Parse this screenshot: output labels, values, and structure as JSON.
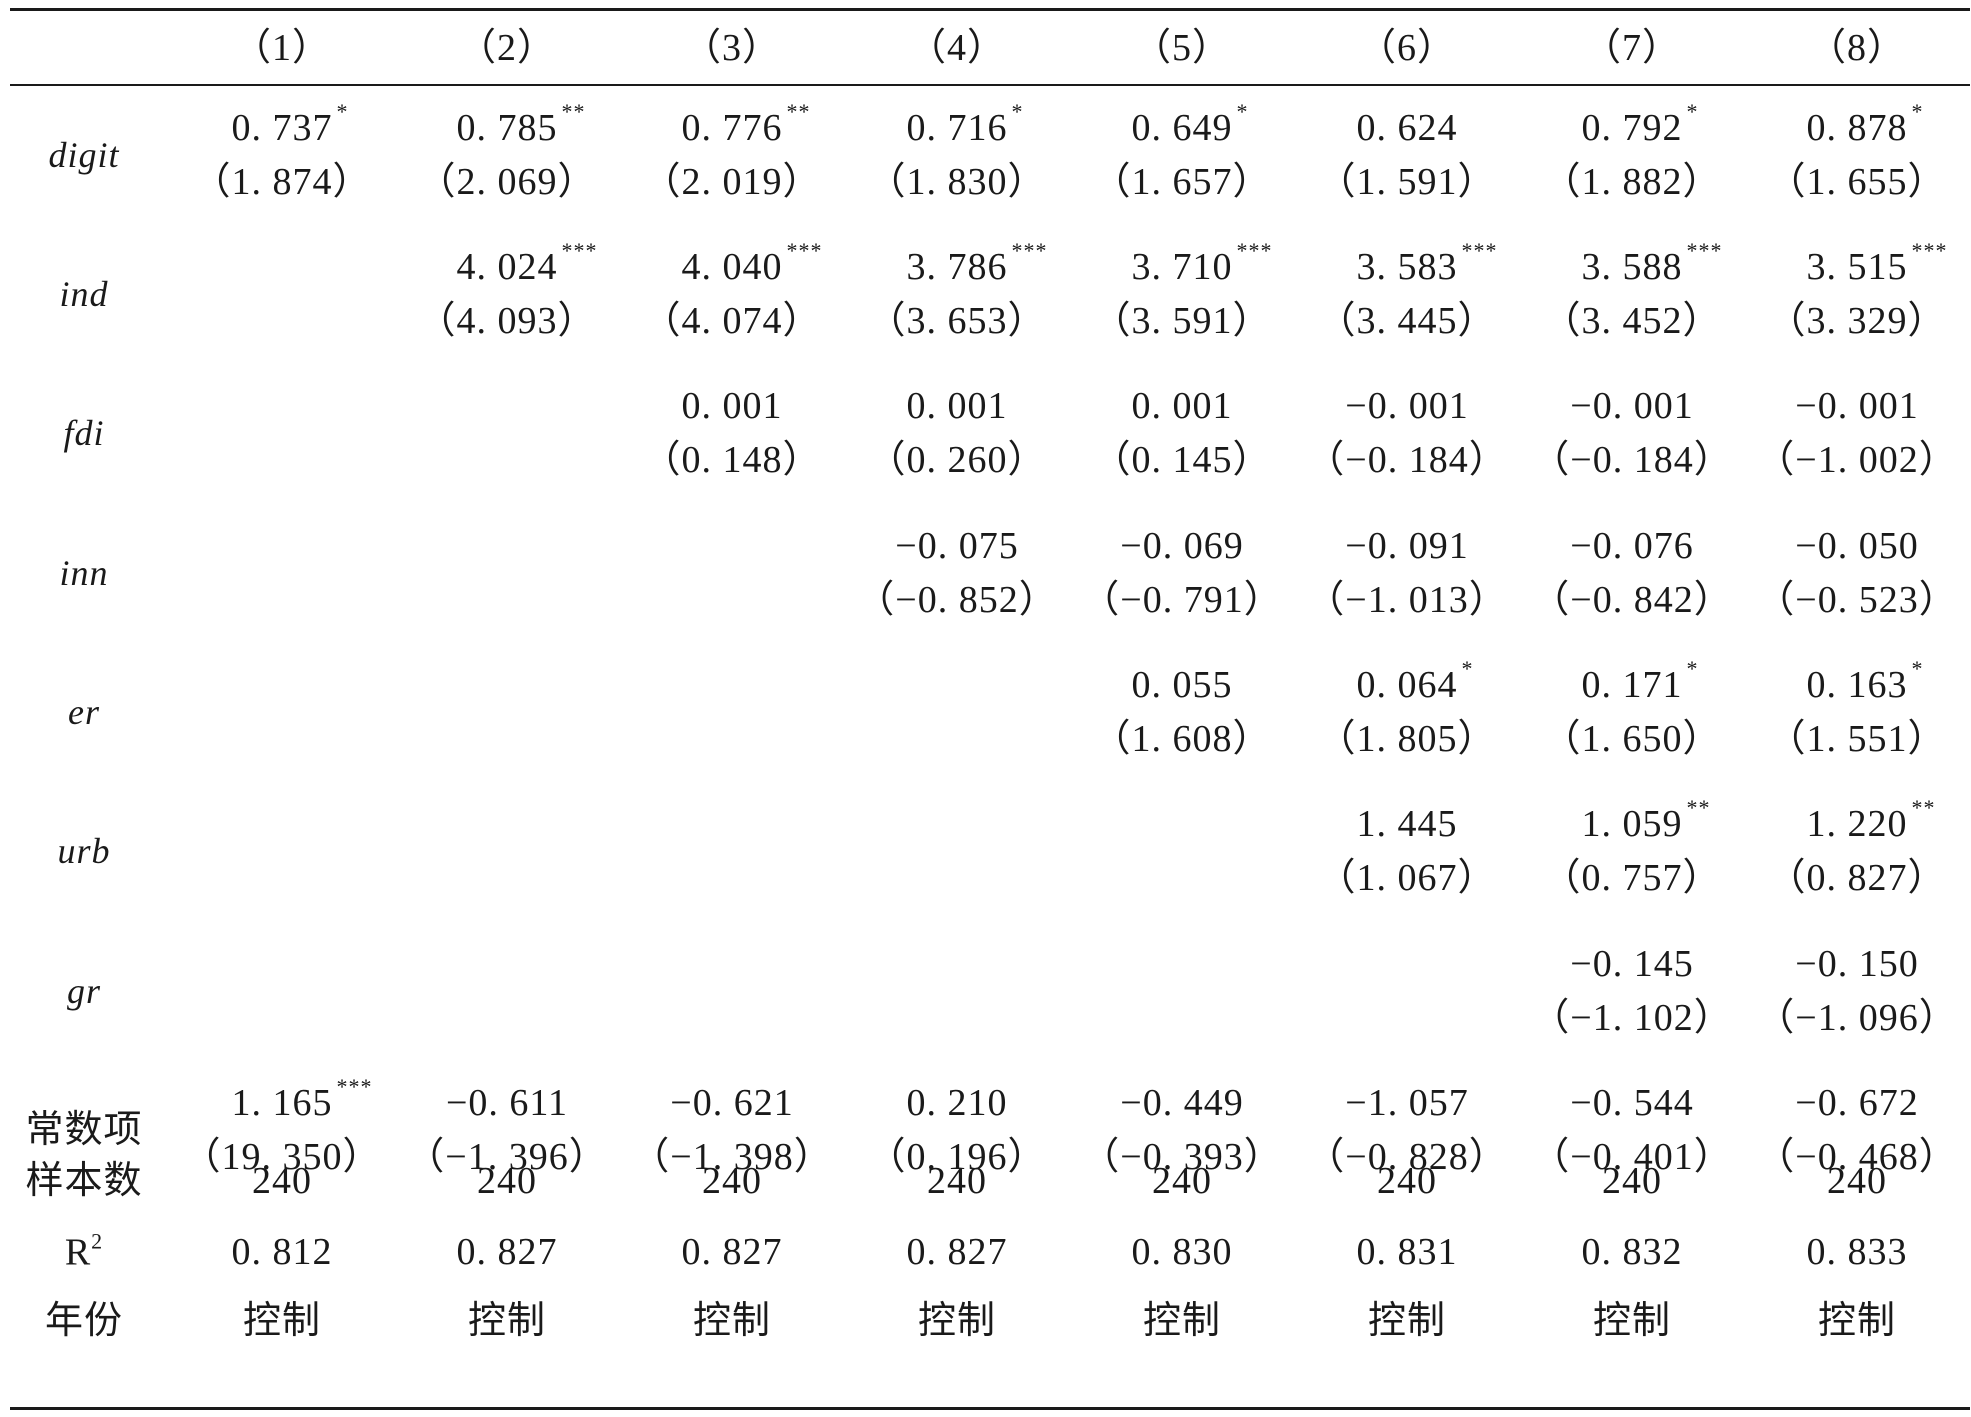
{
  "headers": [
    "（1）",
    "（2）",
    "（3）",
    "（4）",
    "（5）",
    "（6）",
    "（7）",
    "（8）"
  ],
  "variables": [
    {
      "name": "digit",
      "coef": [
        [
          "0. 737",
          "*"
        ],
        [
          "0. 785",
          "**"
        ],
        [
          "0. 776",
          "**"
        ],
        [
          "0. 716",
          "*"
        ],
        [
          "0. 649",
          "*"
        ],
        [
          "0. 624",
          ""
        ],
        [
          "0. 792",
          "*"
        ],
        [
          "0. 878",
          "*"
        ]
      ],
      "t": [
        "（1. 874）",
        "（2. 069）",
        "（2. 019）",
        "（1. 830）",
        "（1. 657）",
        "（1. 591）",
        "（1. 882）",
        "（1. 655）"
      ]
    },
    {
      "name": "ind",
      "coef": [
        null,
        [
          "4. 024",
          "***"
        ],
        [
          "4. 040",
          "***"
        ],
        [
          "3. 786",
          "***"
        ],
        [
          "3. 710",
          "***"
        ],
        [
          "3. 583",
          "***"
        ],
        [
          "3. 588",
          "***"
        ],
        [
          "3. 515",
          "***"
        ]
      ],
      "t": [
        null,
        "（4. 093）",
        "（4. 074）",
        "（3. 653）",
        "（3. 591）",
        "（3. 445）",
        "（3. 452）",
        "（3. 329）"
      ]
    },
    {
      "name": "fdi",
      "coef": [
        null,
        null,
        [
          "0. 001",
          ""
        ],
        [
          "0. 001",
          ""
        ],
        [
          "0. 001",
          ""
        ],
        [
          "−0. 001",
          ""
        ],
        [
          "−0. 001",
          ""
        ],
        [
          "−0. 001",
          ""
        ]
      ],
      "t": [
        null,
        null,
        "（0. 148）",
        "（0. 260）",
        "（0. 145）",
        "（−0. 184）",
        "（−0. 184）",
        "（−1. 002）"
      ]
    },
    {
      "name": "inn",
      "coef": [
        null,
        null,
        null,
        [
          "−0. 075",
          ""
        ],
        [
          "−0. 069",
          ""
        ],
        [
          "−0. 091",
          ""
        ],
        [
          "−0. 076",
          ""
        ],
        [
          "−0. 050",
          ""
        ]
      ],
      "t": [
        null,
        null,
        null,
        "（−0. 852）",
        "（−0. 791）",
        "（−1. 013）",
        "（−0. 842）",
        "（−0. 523）"
      ]
    },
    {
      "name": "er",
      "coef": [
        null,
        null,
        null,
        null,
        [
          "0. 055",
          ""
        ],
        [
          "0. 064",
          "*"
        ],
        [
          "0. 171",
          "*"
        ],
        [
          "0. 163",
          "*"
        ]
      ],
      "t": [
        null,
        null,
        null,
        null,
        "（1. 608）",
        "（1. 805）",
        "（1. 650）",
        "（1. 551）"
      ]
    },
    {
      "name": "urb",
      "coef": [
        null,
        null,
        null,
        null,
        null,
        [
          "1. 445",
          ""
        ],
        [
          "1. 059",
          "**"
        ],
        [
          "1. 220",
          "**"
        ]
      ],
      "t": [
        null,
        null,
        null,
        null,
        null,
        "（1. 067）",
        "（0. 757）",
        "（0. 827）"
      ]
    },
    {
      "name": "gr",
      "coef": [
        null,
        null,
        null,
        null,
        null,
        null,
        [
          "−0. 145",
          ""
        ],
        [
          "−0. 150",
          ""
        ]
      ],
      "t": [
        null,
        null,
        null,
        null,
        null,
        null,
        "（−1. 102）",
        "（−1. 096）"
      ]
    },
    {
      "name": "常数项",
      "coef": [
        [
          "1. 165",
          "***"
        ],
        [
          "−0. 611",
          ""
        ],
        [
          "−0. 621",
          ""
        ],
        [
          "0. 210",
          ""
        ],
        [
          "−0. 449",
          ""
        ],
        [
          "−1. 057",
          ""
        ],
        [
          "−0. 544",
          ""
        ],
        [
          "−0. 672",
          ""
        ]
      ],
      "t": [
        "（19. 350）",
        "（−1. 396）",
        "（−1. 398）",
        "（0. 196）",
        "（−0. 393）",
        "（−0. 828）",
        "（−0. 401）",
        "（−0. 468）"
      ]
    }
  ],
  "stats": [
    {
      "label": "样本数",
      "values": [
        "240",
        "240",
        "240",
        "240",
        "240",
        "240",
        "240",
        "240"
      ]
    },
    {
      "label": "R",
      "sup": "2",
      "values": [
        "0. 812",
        "0. 827",
        "0. 827",
        "0. 827",
        "0. 830",
        "0. 831",
        "0. 832",
        "0. 833"
      ]
    },
    {
      "label": "年份",
      "values": [
        "控制",
        "控制",
        "控制",
        "控制",
        "控制",
        "控制",
        "控制",
        "控制"
      ]
    }
  ]
}
